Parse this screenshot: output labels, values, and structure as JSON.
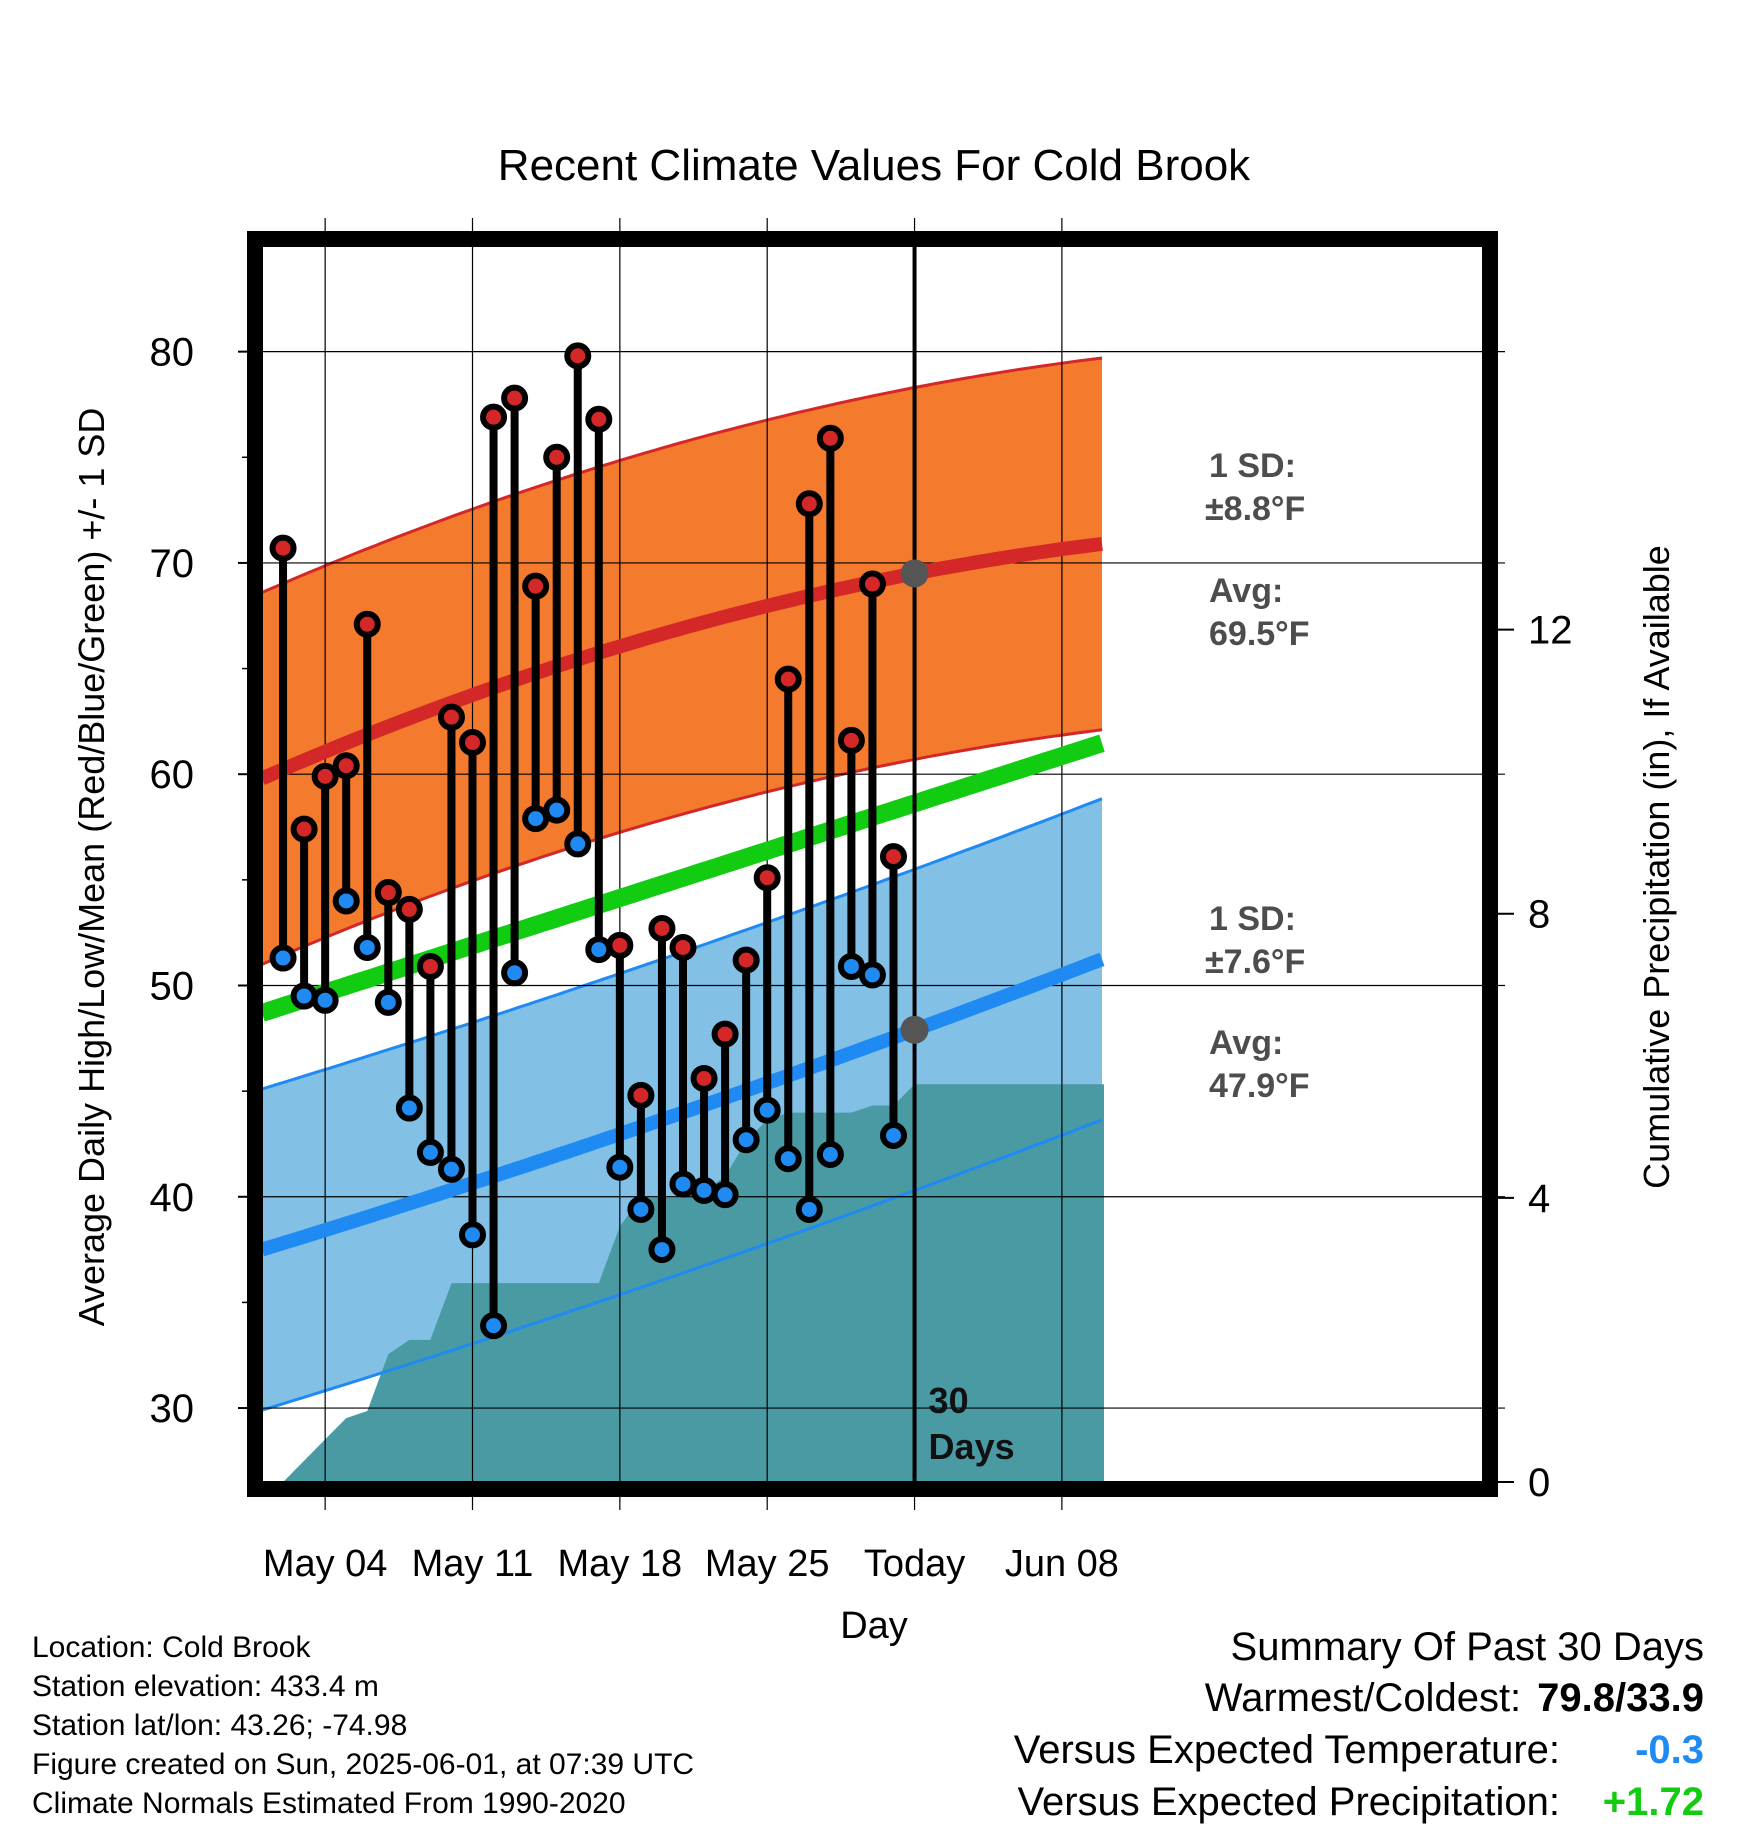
{
  "title": "Recent Climate Values For Cold Brook",
  "ylabel_left": "Average Daily High/Low/Mean (Red/Blue/Green) +/- 1 SD",
  "ylabel_right": "Cumulative Precipitation (in), If Available",
  "xlabel": "Day",
  "today_label": "30 Days",
  "high_sd_label": "1 SD:",
  "high_sd_value": "±8.8°F",
  "high_avg_label": "Avg:",
  "high_avg_value": "69.5°F",
  "low_sd_label": "1 SD:",
  "low_sd_value": "±7.6°F",
  "low_avg_label": "Avg:",
  "low_avg_value": "47.9°F",
  "colors": {
    "high_band": "#f47a2e",
    "high_line": "#d42728",
    "low_band": "#82c0e6",
    "low_line": "#1f8bf2",
    "mean_line": "#11cc11",
    "precip": "#4a9aa4",
    "high_dot": "#d42728",
    "low_dot": "#1f8bf2",
    "marker": "#555555"
  },
  "info": {
    "location": "Location: Cold Brook",
    "elevation": "Station elevation: 433.4 m",
    "latlon": "Station lat/lon: 43.26; -74.98",
    "created": "Figure created on Sun, 2025-06-01, at 07:39 UTC",
    "normals": "Climate Normals Estimated From 1990-2020"
  },
  "summary": {
    "title": "Summary Of Past 30 Days",
    "warmest_label": "Warmest/Coldest:",
    "warmest_value": "79.8/33.9",
    "temp_label": "Versus Expected Temperature:",
    "temp_value": "-0.3",
    "temp_color": "#1f8bf2",
    "precip_label": "Versus Expected Precipitation:",
    "precip_value": "+1.72",
    "precip_color": "#11cc11"
  },
  "chart_data": {
    "type": "range-bar",
    "x_start": "2025-05-02",
    "x_range": [
      "2025-05-01",
      "2025-06-10"
    ],
    "x_ticks": [
      {
        "day": "2025-05-04",
        "label": "May 04"
      },
      {
        "day": "2025-05-11",
        "label": "May 11"
      },
      {
        "day": "2025-05-18",
        "label": "May 18"
      },
      {
        "day": "2025-05-25",
        "label": "May 25"
      },
      {
        "day": "2025-06-01",
        "label": "Today"
      },
      {
        "day": "2025-06-08",
        "label": "Jun 08"
      }
    ],
    "today": "2025-06-01",
    "y_left": {
      "range": [
        26.5,
        85
      ],
      "ticks": [
        30,
        40,
        50,
        60,
        70,
        80
      ]
    },
    "y_right": {
      "range": [
        0,
        17.4
      ],
      "ticks": [
        0,
        4,
        8,
        12
      ]
    },
    "highs": [
      70.7,
      57.4,
      59.9,
      60.4,
      67.1,
      54.4,
      53.6,
      50.9,
      62.7,
      61.5,
      76.9,
      77.8,
      68.9,
      75.0,
      79.8,
      76.8,
      51.9,
      44.8,
      52.7,
      51.8,
      45.6,
      47.7,
      51.2,
      55.1,
      64.5,
      72.8,
      75.9,
      61.6,
      69.0,
      56.1
    ],
    "lows": [
      51.3,
      49.5,
      49.3,
      54.0,
      51.8,
      49.2,
      44.2,
      42.1,
      41.3,
      38.2,
      33.9,
      50.6,
      57.9,
      58.3,
      56.7,
      51.7,
      41.4,
      39.4,
      37.5,
      40.6,
      40.3,
      40.1,
      42.7,
      44.1,
      41.8,
      39.4,
      42.0,
      50.9,
      50.5,
      42.9
    ],
    "normal_high": {
      "start": 59.8,
      "today": 69.5,
      "end": 72.0
    },
    "normal_low": {
      "start": 37.5,
      "today": 47.9,
      "end": 51.0
    },
    "normal_mean": {
      "start": 48.7,
      "end": 61.5
    },
    "high_sd": 8.8,
    "low_sd": 7.6,
    "cumulative_precip": [
      0.0,
      0.3,
      0.6,
      0.9,
      1.0,
      1.8,
      2.0,
      2.0,
      2.8,
      2.8,
      2.8,
      2.8,
      2.8,
      2.8,
      2.8,
      2.8,
      3.6,
      4.0,
      4.0,
      4.0,
      4.1,
      4.3,
      4.8,
      5.1,
      5.2,
      5.2,
      5.2,
      5.2,
      5.3,
      5.3,
      5.6,
      5.6
    ]
  }
}
